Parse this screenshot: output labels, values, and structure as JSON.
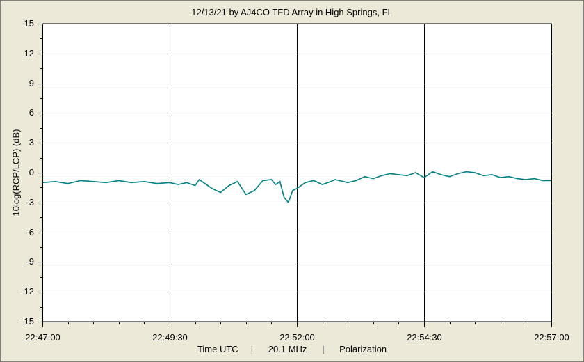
{
  "chart_data": {
    "type": "line",
    "title": "12/13/21  by  AJ4CO TFD Array  in  High Springs, FL",
    "ylabel": "10log(RCP/LCP) (dB)",
    "footer": "Time UTC     |      20.1 MHz      |      Polarization",
    "x_tick_labels": [
      "22:47:00",
      "22:49:30",
      "22:52:00",
      "22:54:30",
      "22:57:00"
    ],
    "y_tick_labels": [
      "15",
      "12",
      "9",
      "6",
      "3",
      "0",
      "-3",
      "-6",
      "-9",
      "-12",
      "-15"
    ],
    "ylim": [
      -15,
      15
    ],
    "xlim_seconds": [
      0,
      600
    ],
    "grid": true,
    "series_color": "#008080",
    "series": [
      {
        "x": [
          0,
          15,
          30,
          45,
          60,
          75,
          90,
          105,
          120,
          135,
          150,
          160,
          170,
          180,
          185,
          190,
          200,
          210,
          220,
          230,
          240,
          250,
          260,
          270,
          275,
          280,
          285,
          290,
          295,
          300,
          310,
          320,
          330,
          340,
          345,
          350,
          360,
          370,
          380,
          390,
          400,
          410,
          420,
          430,
          440,
          450,
          460,
          470,
          480,
          490,
          500,
          510,
          520,
          530,
          540,
          550,
          560,
          570,
          580,
          590,
          600
        ],
        "values": [
          -1.0,
          -0.9,
          -1.1,
          -0.8,
          -0.9,
          -1.0,
          -0.8,
          -1.0,
          -0.9,
          -1.1,
          -1.0,
          -1.2,
          -1.0,
          -1.3,
          -0.7,
          -1.0,
          -1.6,
          -2.0,
          -1.3,
          -0.9,
          -2.2,
          -1.8,
          -0.8,
          -0.7,
          -1.2,
          -0.9,
          -2.5,
          -3.0,
          -1.8,
          -1.6,
          -1.0,
          -0.8,
          -1.2,
          -0.9,
          -0.7,
          -0.8,
          -1.0,
          -0.8,
          -0.4,
          -0.6,
          -0.3,
          -0.1,
          -0.2,
          -0.3,
          0.0,
          -0.5,
          0.1,
          -0.2,
          -0.4,
          -0.1,
          0.1,
          0.0,
          -0.3,
          -0.2,
          -0.5,
          -0.4,
          -0.6,
          -0.7,
          -0.6,
          -0.8,
          -0.8
        ]
      }
    ]
  }
}
